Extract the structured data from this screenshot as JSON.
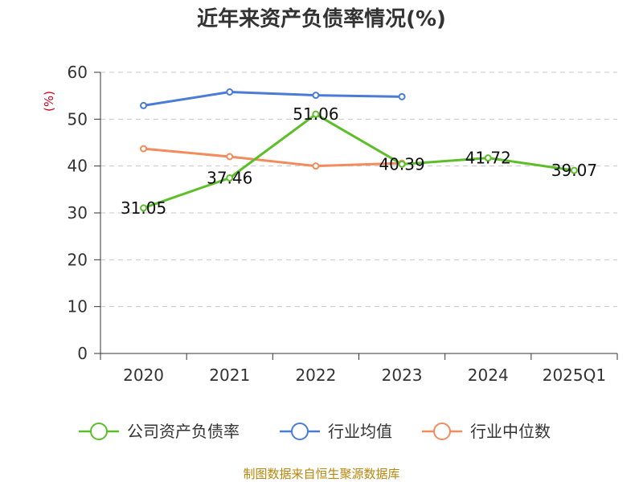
{
  "chart_data": {
    "type": "line",
    "title": "近年来资产负债率情况(%)",
    "y_unit_label": "(%)",
    "categories": [
      "2020",
      "2021",
      "2022",
      "2023",
      "2024",
      "2025Q1"
    ],
    "ylim": [
      0,
      60
    ],
    "y_ticks": [
      0,
      10,
      20,
      30,
      40,
      50,
      60
    ],
    "grid": true,
    "legend_position": "bottom",
    "series": [
      {
        "name": "公司资产负债率",
        "color": "#5cbf2a",
        "values": [
          31.05,
          37.46,
          51.06,
          40.39,
          41.72,
          39.07
        ],
        "data_labels": [
          "31.05",
          "37.46",
          "51.06",
          "40.39",
          "41.72",
          "39.07"
        ]
      },
      {
        "name": "行业均值",
        "color": "#4a7bd6",
        "values": [
          52.9,
          55.8,
          55.1,
          54.8,
          null,
          null
        ]
      },
      {
        "name": "行业中位数",
        "color": "#f28c5c",
        "values": [
          43.7,
          42.0,
          40.0,
          40.6,
          null,
          null
        ]
      }
    ]
  },
  "source_note": "制图数据来自恒生聚源数据库"
}
